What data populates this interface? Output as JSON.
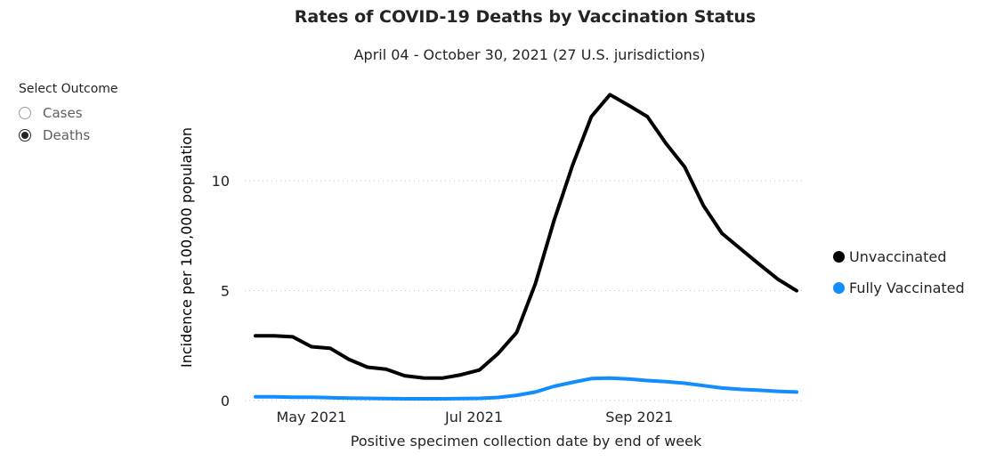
{
  "slicer": {
    "title": "Select Outcome",
    "options": [
      {
        "label": "Cases",
        "selected": false
      },
      {
        "label": "Deaths",
        "selected": true
      }
    ]
  },
  "chart_data": {
    "type": "line",
    "title": "Rates of COVID-19 Deaths by Vaccination Status",
    "subtitle": "April 04 - October 30, 2021 (27 U.S. jurisdictions)",
    "xlabel": "Positive specimen collection date by end of week",
    "ylabel": "Incidence per 100,000 population",
    "ylim": [
      0,
      14.5
    ],
    "yticks": [
      0,
      5,
      10
    ],
    "xtick_labels": [
      {
        "label": "May 2021",
        "date": "2021-05-01"
      },
      {
        "label": "Jul 2021",
        "date": "2021-07-01"
      },
      {
        "label": "Sep 2021",
        "date": "2021-09-01"
      }
    ],
    "x": [
      "2021-04-10",
      "2021-04-17",
      "2021-04-24",
      "2021-05-01",
      "2021-05-08",
      "2021-05-15",
      "2021-05-22",
      "2021-05-29",
      "2021-06-05",
      "2021-06-12",
      "2021-06-19",
      "2021-06-26",
      "2021-07-03",
      "2021-07-10",
      "2021-07-17",
      "2021-07-24",
      "2021-07-31",
      "2021-08-07",
      "2021-08-14",
      "2021-08-21",
      "2021-08-28",
      "2021-09-04",
      "2021-09-11",
      "2021-09-18",
      "2021-09-25",
      "2021-10-02",
      "2021-10-09",
      "2021-10-16",
      "2021-10-23",
      "2021-10-30"
    ],
    "grid": {
      "horizontal": true,
      "style": "dotted"
    },
    "legend_position": "right",
    "series": [
      {
        "name": "Unvaccinated",
        "color": "#000000",
        "values": [
          2.95,
          2.95,
          2.9,
          2.45,
          2.38,
          1.88,
          1.52,
          1.43,
          1.13,
          1.03,
          1.02,
          1.17,
          1.39,
          2.14,
          3.1,
          5.32,
          8.18,
          10.72,
          12.92,
          13.92,
          13.43,
          12.92,
          11.7,
          10.63,
          8.88,
          7.61,
          6.9,
          6.2,
          5.52,
          5.0
        ]
      },
      {
        "name": "Fully Vaccinated",
        "color": "#118DFF",
        "values": [
          0.17,
          0.17,
          0.15,
          0.15,
          0.13,
          0.11,
          0.1,
          0.09,
          0.08,
          0.08,
          0.08,
          0.09,
          0.1,
          0.14,
          0.24,
          0.39,
          0.65,
          0.83,
          1.0,
          1.02,
          0.98,
          0.91,
          0.86,
          0.79,
          0.68,
          0.57,
          0.51,
          0.47,
          0.42,
          0.39
        ]
      }
    ]
  }
}
